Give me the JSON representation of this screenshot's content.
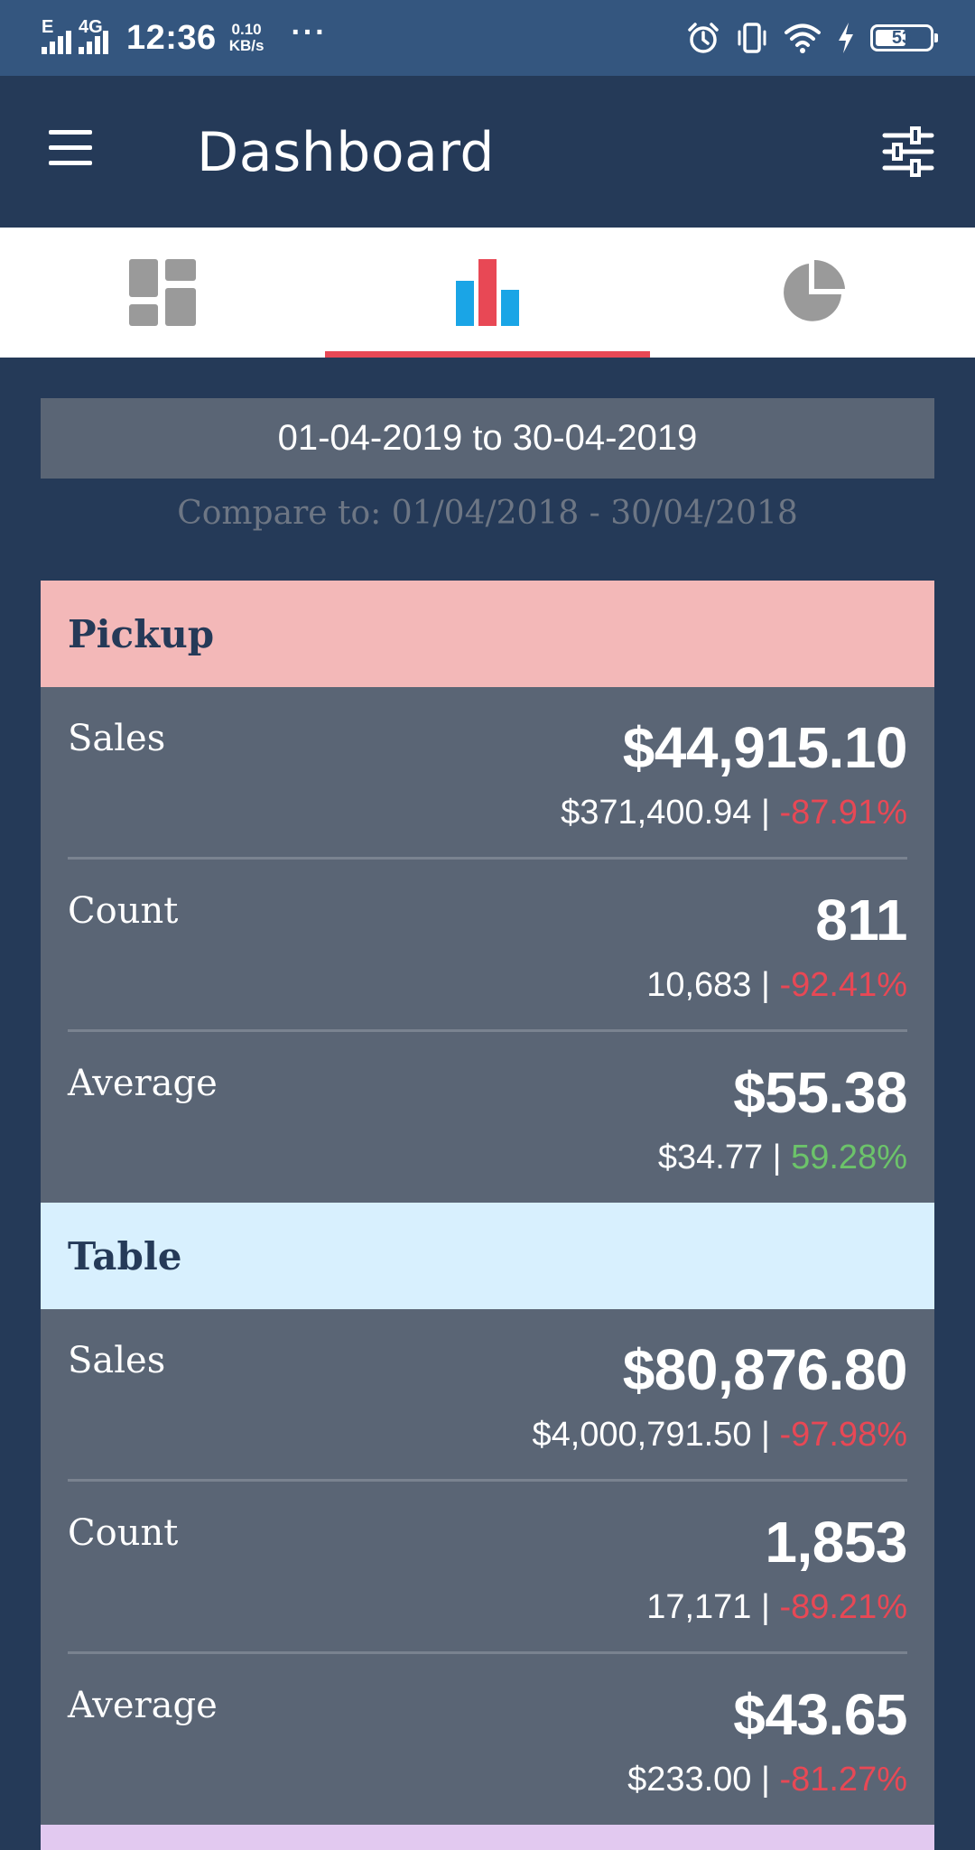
{
  "status_bar": {
    "network_label": "E",
    "network_label_2": "4G",
    "time": "12:36",
    "speed_value": "0.10",
    "speed_unit": "KB/s",
    "more": "···",
    "battery": "53",
    "icons": [
      "signal-icon",
      "signal-4g-icon",
      "alarm-icon",
      "vibrate-icon",
      "wifi-icon",
      "charging-icon",
      "battery-icon"
    ]
  },
  "appbar": {
    "title": "Dashboard",
    "menu_icon": "hamburger-menu-icon",
    "filter_icon": "filter-sliders-icon"
  },
  "tabs": [
    {
      "icon": "dashboard-grid-icon",
      "active": false
    },
    {
      "icon": "bar-chart-icon",
      "active": true
    },
    {
      "icon": "pie-chart-icon",
      "active": false
    }
  ],
  "colors": {
    "primary": "#253a58",
    "status_bar": "#34567f",
    "card": "#5a6575",
    "accent": "#e84855",
    "negative": "#e84855",
    "positive": "#6cc36a",
    "pickup_header": "#f3b8b8",
    "table_header": "#d8f0fe",
    "next_header": "#e2c9f0"
  },
  "date_range": "01-04-2019 to 30-04-2019",
  "compare_to": "Compare to: 01/04/2018 - 30/04/2018",
  "sections": [
    {
      "title": "Pickup",
      "metrics": [
        {
          "label": "Sales",
          "value": "$44,915.10",
          "compare": "$371,400.94",
          "separator": "|",
          "change": "-87.91%",
          "trend": "negative"
        },
        {
          "label": "Count",
          "value": "811",
          "compare": "10,683",
          "separator": "|",
          "change": "-92.41%",
          "trend": "negative"
        },
        {
          "label": "Average",
          "value": "$55.38",
          "compare": "$34.77",
          "separator": "|",
          "change": "59.28%",
          "trend": "positive"
        }
      ]
    },
    {
      "title": "Table",
      "metrics": [
        {
          "label": "Sales",
          "value": "$80,876.80",
          "compare": "$4,000,791.50",
          "separator": "|",
          "change": "-97.98%",
          "trend": "negative"
        },
        {
          "label": "Count",
          "value": "1,853",
          "compare": "17,171",
          "separator": "|",
          "change": "-89.21%",
          "trend": "negative"
        },
        {
          "label": "Average",
          "value": "$43.65",
          "compare": "$233.00",
          "separator": "|",
          "change": "-81.27%",
          "trend": "negative"
        }
      ]
    }
  ]
}
